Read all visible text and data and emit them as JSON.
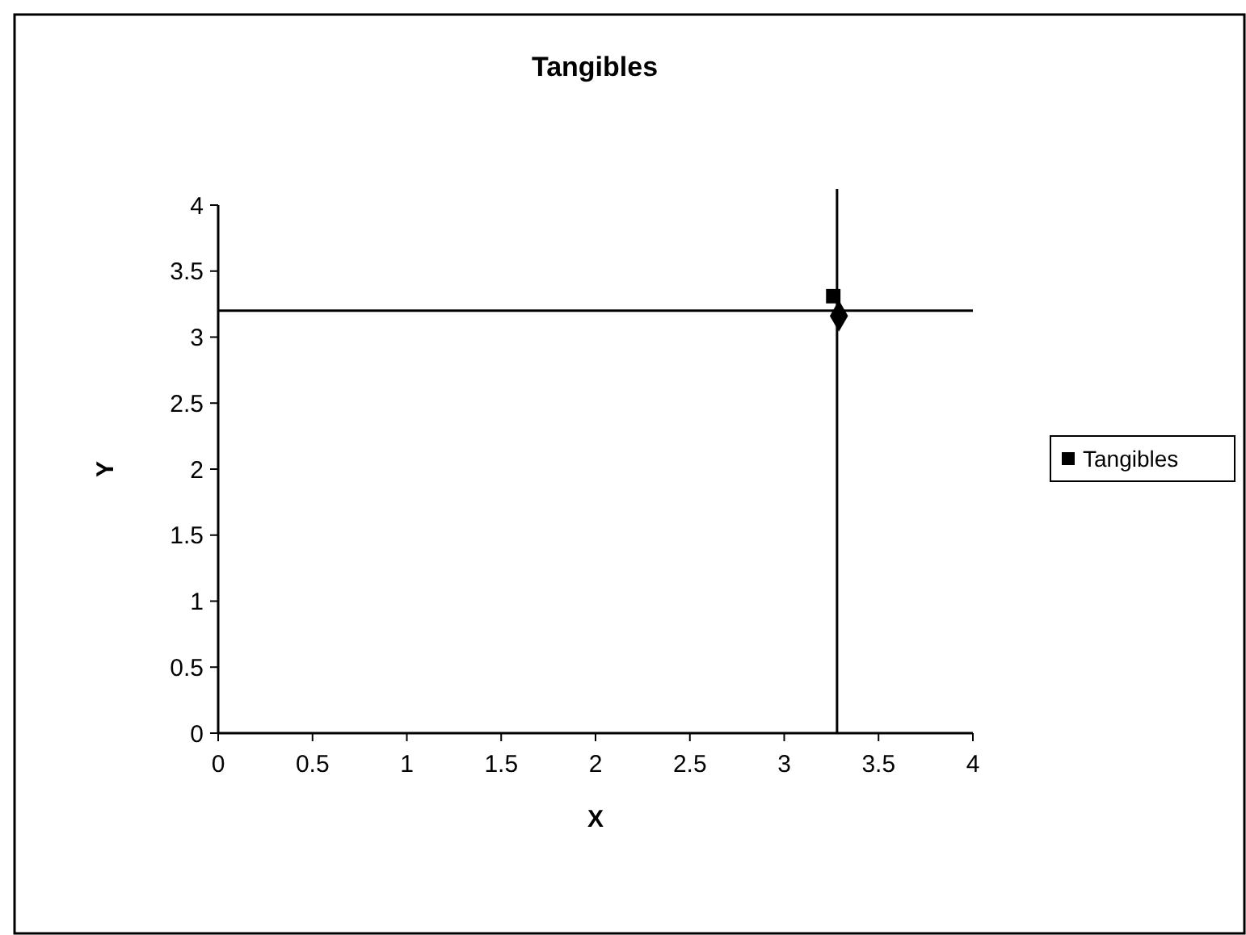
{
  "chart_data": {
    "type": "scatter",
    "title": "Tangibles",
    "xlabel": "X",
    "ylabel": "Y",
    "xlim": [
      0,
      4
    ],
    "xticks": [
      0,
      0.5,
      1,
      1.5,
      2,
      2.5,
      3,
      3.5,
      4
    ],
    "ylim": [
      0,
      4
    ],
    "yticks": [
      0,
      0.5,
      1,
      1.5,
      2,
      2.5,
      3,
      3.5,
      4
    ],
    "series": [
      {
        "name": "Tangibles",
        "color": "#000000",
        "x": [
          3.26
        ],
        "values": [
          3.31
        ],
        "marker": "square"
      },
      {
        "color": "#000000",
        "x": [
          3.29
        ],
        "values": [
          3.16
        ],
        "marker": "diamond"
      }
    ],
    "ref_lines": [
      {
        "axis": "x",
        "value": 3.28
      },
      {
        "axis": "y",
        "value": 3.2
      }
    ],
    "legend": "right",
    "grid": false
  }
}
